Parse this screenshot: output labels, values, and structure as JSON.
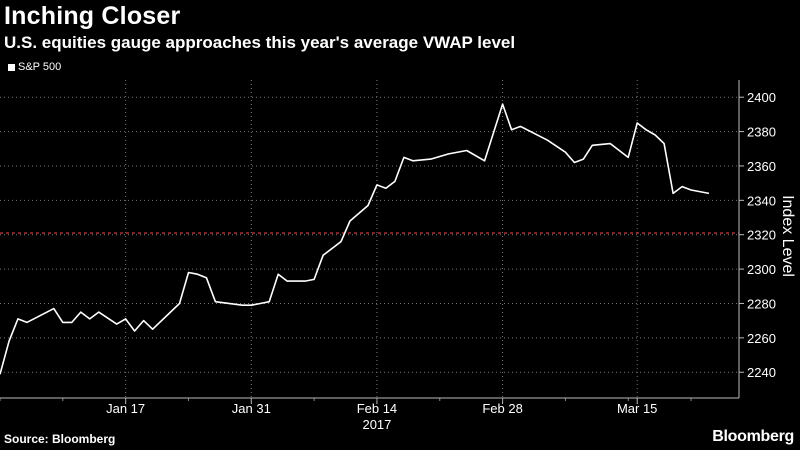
{
  "header": {
    "title": "Inching Closer",
    "subtitle": "U.S. equities gauge approaches this year's average VWAP level"
  },
  "footer": {
    "source": "Source: Bloomberg",
    "brand": "Bloomberg"
  },
  "chart_data": {
    "type": "line",
    "legend_position": "top-left",
    "grid": true,
    "ylabel": "Index Level",
    "ylim": [
      2225,
      2410
    ],
    "yticks": [
      2240,
      2260,
      2280,
      2300,
      2320,
      2340,
      2360,
      2380,
      2400
    ],
    "xrange": [
      "2017-01-03",
      "2017-03-23"
    ],
    "xticks": [
      {
        "date": "2017-01-17",
        "label": "Jan 17"
      },
      {
        "date": "2017-01-31",
        "label": "Jan 31"
      },
      {
        "date": "2017-02-14",
        "label": "Feb 14"
      },
      {
        "date": "2017-02-28",
        "label": "Feb 28"
      },
      {
        "date": "2017-03-15",
        "label": "Mar 15"
      }
    ],
    "year_label": "2017",
    "reference_line": {
      "value": 2321,
      "color": "#d0343a",
      "style": "dashed"
    },
    "series": [
      {
        "name": "S&P 500",
        "color": "#ffffff",
        "points": [
          [
            "2017-01-03",
            2238.8
          ],
          [
            "2017-01-04",
            2258
          ],
          [
            "2017-01-05",
            2271
          ],
          [
            "2017-01-06",
            2269
          ],
          [
            "2017-01-09",
            2277
          ],
          [
            "2017-01-10",
            2269
          ],
          [
            "2017-01-11",
            2269
          ],
          [
            "2017-01-12",
            2275
          ],
          [
            "2017-01-13",
            2271
          ],
          [
            "2017-01-14",
            2275
          ],
          [
            "2017-01-16",
            2268
          ],
          [
            "2017-01-17",
            2271
          ],
          [
            "2017-01-18",
            2264
          ],
          [
            "2017-01-19",
            2270
          ],
          [
            "2017-01-20",
            2265
          ],
          [
            "2017-01-23",
            2280
          ],
          [
            "2017-01-24",
            2298
          ],
          [
            "2017-01-25",
            2297
          ],
          [
            "2017-01-26",
            2295
          ],
          [
            "2017-01-27",
            2281
          ],
          [
            "2017-01-30",
            2279
          ],
          [
            "2017-01-31",
            2279
          ],
          [
            "2017-02-01",
            2280
          ],
          [
            "2017-02-02",
            2281
          ],
          [
            "2017-02-03",
            2297
          ],
          [
            "2017-02-04",
            2293
          ],
          [
            "2017-02-06",
            2293
          ],
          [
            "2017-02-07",
            2294
          ],
          [
            "2017-02-08",
            2308
          ],
          [
            "2017-02-10",
            2316
          ],
          [
            "2017-02-11",
            2328
          ],
          [
            "2017-02-13",
            2337
          ],
          [
            "2017-02-14",
            2349
          ],
          [
            "2017-02-15",
            2347
          ],
          [
            "2017-02-16",
            2351
          ],
          [
            "2017-02-17",
            2365
          ],
          [
            "2017-02-18",
            2363
          ],
          [
            "2017-02-20",
            2364
          ],
          [
            "2017-02-22",
            2367
          ],
          [
            "2017-02-24",
            2369
          ],
          [
            "2017-02-26",
            2363
          ],
          [
            "2017-02-28",
            2396
          ],
          [
            "2017-03-01",
            2381
          ],
          [
            "2017-03-02",
            2383
          ],
          [
            "2017-03-05",
            2375
          ],
          [
            "2017-03-07",
            2368
          ],
          [
            "2017-03-08",
            2362
          ],
          [
            "2017-03-09",
            2364
          ],
          [
            "2017-03-10",
            2372
          ],
          [
            "2017-03-12",
            2373
          ],
          [
            "2017-03-14",
            2365
          ],
          [
            "2017-03-15",
            2385
          ],
          [
            "2017-03-16",
            2381
          ],
          [
            "2017-03-17",
            2378
          ],
          [
            "2017-03-18",
            2373
          ],
          [
            "2017-03-19",
            2344
          ],
          [
            "2017-03-20",
            2348
          ],
          [
            "2017-03-21",
            2346
          ],
          [
            "2017-03-23",
            2344
          ]
        ]
      }
    ]
  }
}
